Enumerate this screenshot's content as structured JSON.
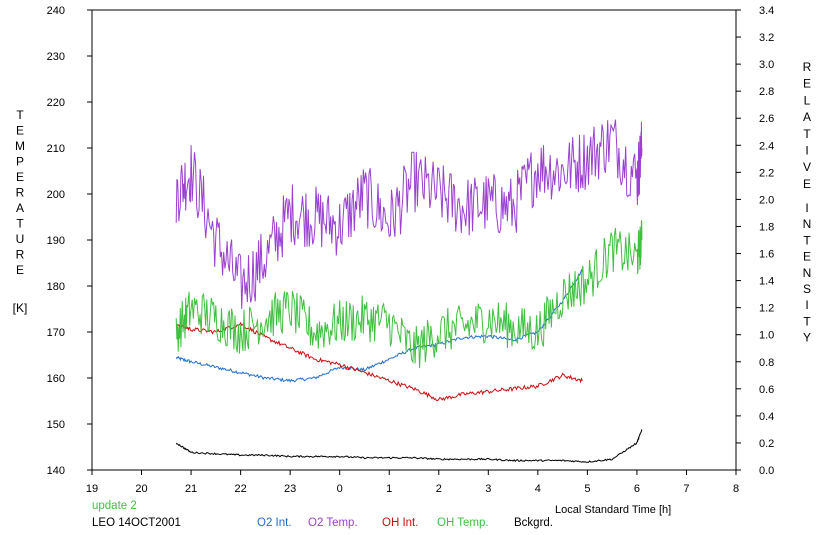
{
  "chart_data": {
    "type": "line",
    "x_axis": {
      "label": "Local Standard Time [h]",
      "range": [
        19,
        32
      ],
      "ticks": [
        19,
        20,
        21,
        22,
        23,
        24,
        25,
        26,
        27,
        28,
        29,
        30,
        31,
        32
      ],
      "tick_labels": [
        "19",
        "20",
        "21",
        "22",
        "23",
        "0",
        "1",
        "2",
        "3",
        "4",
        "5",
        "6",
        "7",
        "8"
      ]
    },
    "y_left": {
      "label": "TEMPERATURE [K]",
      "label_letters": [
        "T",
        "E",
        "M",
        "P",
        "E",
        "R",
        "A",
        "T",
        "U",
        "R",
        "E"
      ],
      "unit": "[K]",
      "range": [
        140,
        240
      ],
      "ticks": [
        "140",
        "150",
        "160",
        "170",
        "180",
        "190",
        "200",
        "210",
        "220",
        "230",
        "240"
      ]
    },
    "y_right": {
      "label": "RELATIVE INTENSITY",
      "letters_word1": [
        "R",
        "E",
        "L",
        "A",
        "T",
        "I",
        "V",
        "E"
      ],
      "letters_word2": [
        "I",
        "N",
        "T",
        "E",
        "N",
        "S",
        "I",
        "T",
        "Y"
      ],
      "range": [
        0.0,
        3.4
      ],
      "ticks": [
        "0.0",
        "0.2",
        "0.4",
        "0.6",
        "0.8",
        "1.0",
        "1.2",
        "1.4",
        "1.6",
        "1.8",
        "2.0",
        "2.2",
        "2.4",
        "2.6",
        "2.8",
        "3.0",
        "3.2",
        "3.4"
      ]
    },
    "update_text": "update 2",
    "station_text": "LEO 14OCT2001",
    "series": [
      {
        "name": "O2 Int.",
        "axis": "right",
        "color": "#1f6fd0",
        "x": [
          20.7,
          21.0,
          21.5,
          22.0,
          22.5,
          23.0,
          23.5,
          24.0,
          24.5,
          25.0,
          25.5,
          26.0,
          26.5,
          27.0,
          27.5,
          28.0,
          28.5,
          28.9
        ],
        "y": [
          0.83,
          0.8,
          0.76,
          0.72,
          0.68,
          0.66,
          0.68,
          0.76,
          0.74,
          0.82,
          0.9,
          0.93,
          0.98,
          0.99,
          0.96,
          1.02,
          1.25,
          1.48
        ]
      },
      {
        "name": "O2 Temp.",
        "axis": "left",
        "color": "#9b40d0",
        "x": [
          20.7,
          21.0,
          21.5,
          22.0,
          22.5,
          23.0,
          23.5,
          24.0,
          24.5,
          25.0,
          25.5,
          26.0,
          26.5,
          27.0,
          27.5,
          28.0,
          28.5,
          29.0,
          29.5,
          30.0,
          30.1
        ],
        "y": [
          200,
          205,
          190,
          180,
          186,
          196,
          195,
          193,
          200,
          194,
          203,
          200,
          197,
          198,
          197,
          206,
          205,
          208,
          212,
          203,
          210
        ]
      },
      {
        "name": "OH Int.",
        "axis": "right",
        "color": "#c81010",
        "x": [
          20.7,
          21.0,
          21.5,
          22.0,
          22.5,
          23.0,
          23.5,
          24.0,
          24.5,
          25.0,
          25.5,
          26.0,
          26.5,
          27.0,
          27.5,
          28.0,
          28.5,
          28.9
        ],
        "y": [
          1.08,
          1.04,
          1.02,
          1.08,
          0.98,
          0.9,
          0.82,
          0.78,
          0.72,
          0.66,
          0.6,
          0.52,
          0.56,
          0.58,
          0.6,
          0.62,
          0.7,
          0.66
        ]
      },
      {
        "name": "OH Temp.",
        "axis": "left",
        "color": "#40c040",
        "x": [
          20.7,
          21.0,
          21.5,
          22.0,
          22.5,
          23.0,
          23.5,
          24.0,
          24.5,
          25.0,
          25.5,
          26.0,
          26.5,
          27.0,
          27.5,
          28.0,
          28.5,
          29.0,
          29.5,
          30.0,
          30.1
        ],
        "y": [
          170,
          175,
          173,
          170,
          173,
          175,
          170,
          172,
          173,
          172,
          166,
          170,
          171,
          173,
          171,
          170,
          178,
          181,
          188,
          186,
          190
        ]
      },
      {
        "name": "Bckgrd.",
        "axis": "right",
        "color": "#000000",
        "x": [
          20.7,
          21.0,
          21.5,
          22.0,
          22.5,
          23.0,
          23.5,
          24.0,
          24.5,
          25.0,
          25.5,
          26.0,
          26.5,
          27.0,
          27.5,
          28.0,
          28.5,
          29.0,
          29.5,
          30.0,
          30.1
        ],
        "y": [
          0.2,
          0.13,
          0.12,
          0.11,
          0.11,
          0.1,
          0.1,
          0.1,
          0.09,
          0.09,
          0.09,
          0.08,
          0.08,
          0.08,
          0.07,
          0.07,
          0.07,
          0.06,
          0.08,
          0.2,
          0.3
        ]
      }
    ]
  }
}
